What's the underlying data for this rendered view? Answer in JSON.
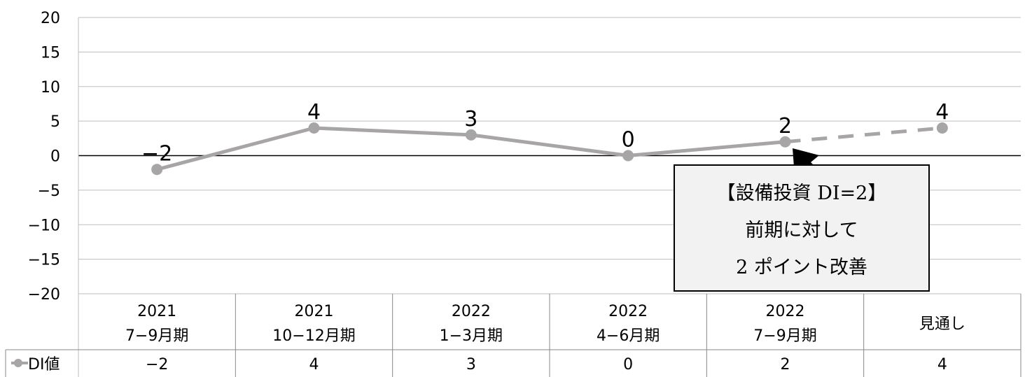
{
  "chart_data": {
    "type": "line",
    "categories": [
      [
        "2021",
        "7−9月期"
      ],
      [
        "2021",
        "10−12月期"
      ],
      [
        "2022",
        "1−3月期"
      ],
      [
        "2022",
        "4−6月期"
      ],
      [
        "2022",
        "7−9月期"
      ],
      [
        "見通し"
      ]
    ],
    "series": [
      {
        "name": "DI値",
        "values": [
          -2,
          4,
          3,
          0,
          2,
          4
        ],
        "forecast_from_index": 4
      }
    ],
    "data_labels": [
      "−2",
      "4",
      "3",
      "0",
      "2",
      "4"
    ],
    "table_values": [
      "−2",
      "4",
      "3",
      "0",
      "2",
      "4"
    ],
    "ylim": [
      -20,
      20
    ],
    "yticks": [
      20,
      15,
      10,
      5,
      0,
      -5,
      -10,
      -15,
      -20
    ],
    "ytick_labels": [
      "20",
      "15",
      "10",
      "5",
      "0",
      "−5",
      "−10",
      "−15",
      "−20"
    ],
    "grid": true,
    "legend_placement": "data-table",
    "annotation": {
      "lines": [
        "【設備投資 DI=2】",
        "前期に対して",
        "2 ポイント改善"
      ],
      "points_to_index": 4
    },
    "colors": {
      "series": "#a7a5a6",
      "grid": "#bdbdbd",
      "zero_line": "#000000",
      "annotation_bg": "#f2f2f2"
    }
  }
}
